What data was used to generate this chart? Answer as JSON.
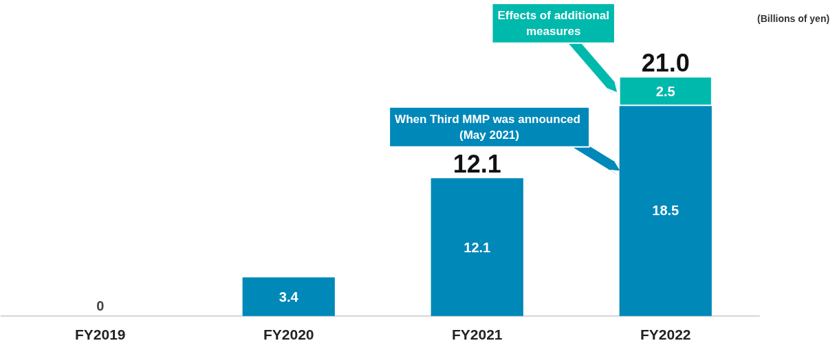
{
  "chart_data": {
    "type": "bar",
    "stacked": true,
    "categories": [
      "FY2019",
      "FY2020",
      "FY2021",
      "FY2022"
    ],
    "series": [
      {
        "color": "#0088b9",
        "values": [
          0,
          3.4,
          12.1,
          18.5
        ]
      },
      {
        "color": "#00b9ad",
        "values": [
          null,
          null,
          null,
          2.5
        ]
      }
    ],
    "data_labels": true,
    "totals": [
      null,
      null,
      "12.1",
      "21.0"
    ],
    "annotations": [
      "Effects of additional\nmeasures",
      "When Third MMP was  announced\n(May 2021)",
      "(Billions of yen)"
    ]
  }
}
